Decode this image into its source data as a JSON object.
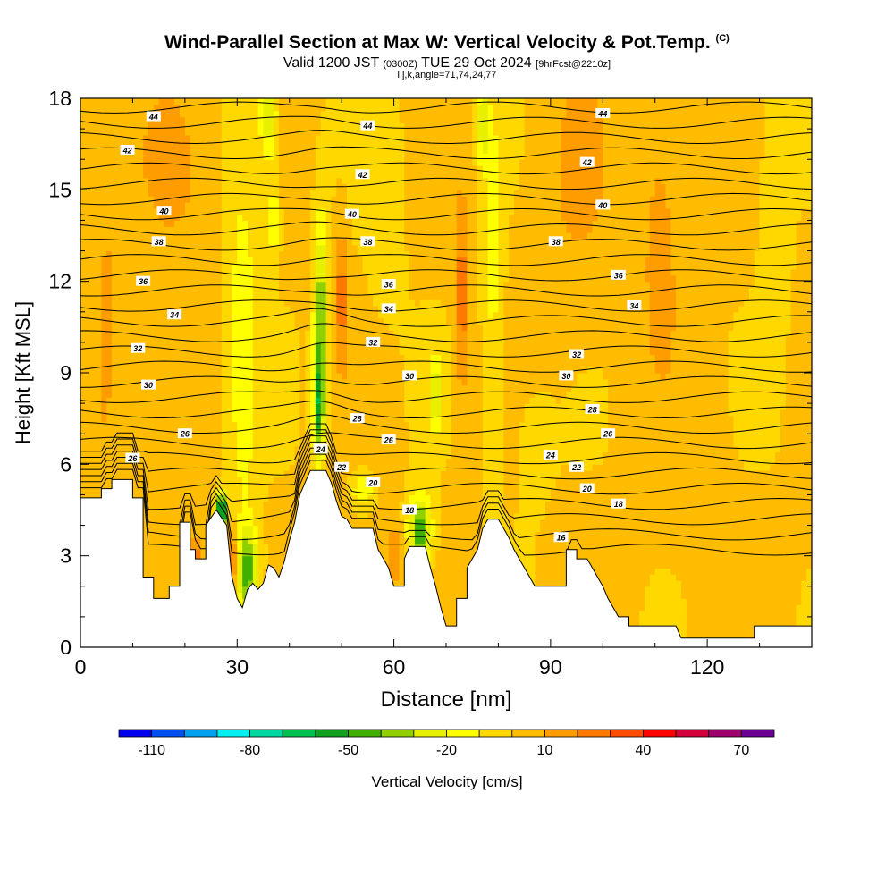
{
  "title": {
    "main": "Wind-Parallel Section at Max W: Vertical Velocity & Pot.Temp.",
    "copyright": "(C)",
    "valid_prefix": "Valid 1200 JST",
    "valid_utc": "(0300Z)",
    "valid_date": "TUE 29 Oct 2024",
    "forecast": "[9hrFcst@2210z]",
    "params": "i,j,k,angle=71,74,24,77"
  },
  "chart_data": {
    "type": "heatmap",
    "xlabel": "Distance [nm]",
    "ylabel": "Height [Kft MSL]",
    "xlim": [
      0,
      140
    ],
    "ylim": [
      0,
      18
    ],
    "x_ticks": [
      0,
      30,
      60,
      90,
      120
    ],
    "y_ticks": [
      0,
      3,
      6,
      9,
      12,
      15,
      18
    ],
    "colorbar": {
      "label": "Vertical Velocity [cm/s]",
      "tick_labels": [
        "-110",
        "-80",
        "-50",
        "-20",
        "10",
        "40",
        "70"
      ],
      "bounds": [
        -120,
        -110,
        -100,
        -90,
        -80,
        -70,
        -60,
        -50,
        -40,
        -30,
        -20,
        -10,
        0,
        10,
        20,
        30,
        40,
        50,
        60,
        70,
        80
      ],
      "colors": [
        "#0000ee",
        "#0050f0",
        "#00a0f0",
        "#00f0f0",
        "#00d8a0",
        "#00c050",
        "#10a020",
        "#40b000",
        "#90d000",
        "#e8f000",
        "#ffff00",
        "#ffd800",
        "#ffbc00",
        "#ff9c00",
        "#ff7800",
        "#ff4c00",
        "#ff0000",
        "#d4003c",
        "#a0006c",
        "#6a0094"
      ]
    },
    "terrain_kft": [
      [
        0,
        4.9
      ],
      [
        4,
        4.9
      ],
      [
        4,
        5.2
      ],
      [
        6,
        5.2
      ],
      [
        6,
        5.5
      ],
      [
        10,
        5.5
      ],
      [
        10,
        4.9
      ],
      [
        12,
        4.9
      ],
      [
        12,
        2.3
      ],
      [
        14,
        2.3
      ],
      [
        14,
        1.6
      ],
      [
        17,
        1.6
      ],
      [
        17,
        2.0
      ],
      [
        19,
        2.0
      ],
      [
        19,
        4.1
      ],
      [
        21,
        4.1
      ],
      [
        21,
        3.2
      ],
      [
        22,
        3.2
      ],
      [
        22,
        2.9
      ],
      [
        24,
        2.9
      ],
      [
        24,
        4.0
      ],
      [
        26,
        4.5
      ],
      [
        28,
        4.0
      ],
      [
        29,
        2.3
      ],
      [
        30,
        1.6
      ],
      [
        31,
        1.3
      ],
      [
        32,
        1.9
      ],
      [
        33,
        2.1
      ],
      [
        34,
        1.9
      ],
      [
        35,
        2.1
      ],
      [
        36,
        2.7
      ],
      [
        37,
        2.6
      ],
      [
        38,
        2.3
      ],
      [
        39,
        2.8
      ],
      [
        40,
        3.5
      ],
      [
        41,
        4.1
      ],
      [
        42,
        5.0
      ],
      [
        43,
        5.4
      ],
      [
        44,
        5.8
      ],
      [
        47,
        5.8
      ],
      [
        48,
        5.4
      ],
      [
        49,
        4.8
      ],
      [
        50,
        4.3
      ],
      [
        51,
        4.2
      ],
      [
        52,
        3.9
      ],
      [
        56,
        3.9
      ],
      [
        57,
        3.2
      ],
      [
        58,
        2.9
      ],
      [
        59,
        2.6
      ],
      [
        60,
        2.0
      ],
      [
        62,
        2.0
      ],
      [
        62,
        2.9
      ],
      [
        63,
        3.3
      ],
      [
        66,
        3.3
      ],
      [
        67,
        2.6
      ],
      [
        68,
        2.0
      ],
      [
        69,
        1.3
      ],
      [
        70,
        0.7
      ],
      [
        72,
        0.7
      ],
      [
        72,
        1.6
      ],
      [
        74,
        1.6
      ],
      [
        74,
        2.6
      ],
      [
        76,
        3.2
      ],
      [
        77,
        3.9
      ],
      [
        78,
        4.2
      ],
      [
        80,
        4.2
      ],
      [
        81,
        3.9
      ],
      [
        82,
        3.6
      ],
      [
        83,
        3.2
      ],
      [
        84,
        2.9
      ],
      [
        85,
        2.6
      ],
      [
        86,
        2.3
      ],
      [
        87,
        2.0
      ],
      [
        93,
        2.0
      ],
      [
        93,
        3.2
      ],
      [
        95,
        3.2
      ],
      [
        95,
        2.9
      ],
      [
        97,
        2.9
      ],
      [
        98,
        2.6
      ],
      [
        99,
        2.3
      ],
      [
        100,
        2.0
      ],
      [
        101,
        1.6
      ],
      [
        102,
        1.3
      ],
      [
        103,
        1.0
      ],
      [
        105,
        1.0
      ],
      [
        105,
        0.7
      ],
      [
        114,
        0.7
      ],
      [
        115,
        0.3
      ],
      [
        129,
        0.3
      ],
      [
        129,
        0.7
      ],
      [
        140,
        0.7
      ]
    ],
    "theta_contours_K": [
      16,
      18,
      20,
      22,
      24,
      26,
      28,
      30,
      32,
      34,
      36,
      38,
      40,
      42,
      44
    ],
    "contour_labels": [
      {
        "text": "44",
        "x": 14,
        "y": 17.4
      },
      {
        "text": "44",
        "x": 55,
        "y": 17.1
      },
      {
        "text": "44",
        "x": 100,
        "y": 17.5
      },
      {
        "text": "42",
        "x": 9,
        "y": 16.3
      },
      {
        "text": "42",
        "x": 54,
        "y": 15.5
      },
      {
        "text": "42",
        "x": 97,
        "y": 15.9
      },
      {
        "text": "40",
        "x": 16,
        "y": 14.3
      },
      {
        "text": "40",
        "x": 52,
        "y": 14.2
      },
      {
        "text": "40",
        "x": 100,
        "y": 14.5
      },
      {
        "text": "38",
        "x": 15,
        "y": 13.3
      },
      {
        "text": "38",
        "x": 55,
        "y": 13.3
      },
      {
        "text": "38",
        "x": 91,
        "y": 13.3
      },
      {
        "text": "36",
        "x": 12,
        "y": 12.0
      },
      {
        "text": "36",
        "x": 59,
        "y": 11.9
      },
      {
        "text": "36",
        "x": 103,
        "y": 12.2
      },
      {
        "text": "34",
        "x": 18,
        "y": 10.9
      },
      {
        "text": "34",
        "x": 59,
        "y": 11.1
      },
      {
        "text": "34",
        "x": 106,
        "y": 11.2
      },
      {
        "text": "32",
        "x": 11,
        "y": 9.8
      },
      {
        "text": "32",
        "x": 56,
        "y": 10.0
      },
      {
        "text": "32",
        "x": 95,
        "y": 9.6
      },
      {
        "text": "30",
        "x": 13,
        "y": 8.6
      },
      {
        "text": "30",
        "x": 63,
        "y": 8.9
      },
      {
        "text": "30",
        "x": 93,
        "y": 8.9
      },
      {
        "text": "28",
        "x": 53,
        "y": 7.5
      },
      {
        "text": "28",
        "x": 98,
        "y": 7.8
      },
      {
        "text": "26",
        "x": 20,
        "y": 7.0
      },
      {
        "text": "26",
        "x": 59,
        "y": 6.8
      },
      {
        "text": "26",
        "x": 101,
        "y": 7.0
      },
      {
        "text": "26",
        "x": 10,
        "y": 6.2
      },
      {
        "text": "24",
        "x": 46,
        "y": 6.5
      },
      {
        "text": "24",
        "x": 90,
        "y": 6.3
      },
      {
        "text": "22",
        "x": 50,
        "y": 5.9
      },
      {
        "text": "22",
        "x": 95,
        "y": 5.9
      },
      {
        "text": "20",
        "x": 56,
        "y": 5.4
      },
      {
        "text": "20",
        "x": 97,
        "y": 5.2
      },
      {
        "text": "18",
        "x": 63,
        "y": 4.5
      },
      {
        "text": "18",
        "x": 103,
        "y": 4.7
      },
      {
        "text": "16",
        "x": 92,
        "y": 3.6
      }
    ]
  }
}
